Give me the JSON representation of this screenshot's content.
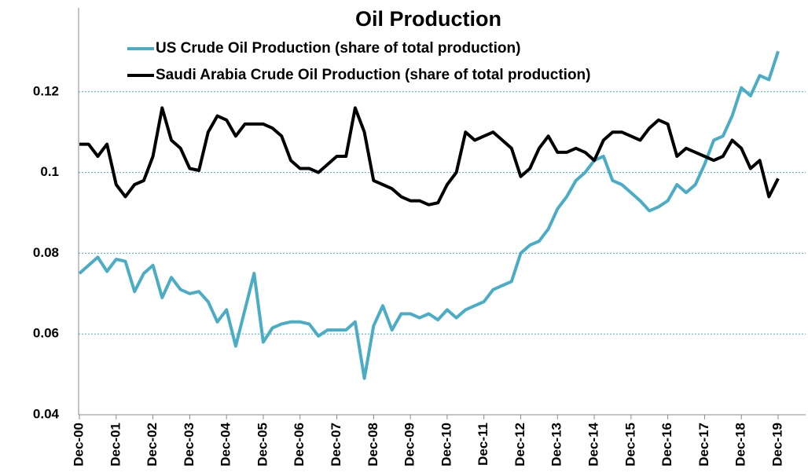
{
  "chart_data": {
    "type": "line",
    "title": "Oil Production",
    "categories": [
      "Dec-00",
      null,
      null,
      null,
      "Dec-01",
      null,
      null,
      null,
      "Dec-02",
      null,
      null,
      null,
      "Dec-03",
      null,
      null,
      null,
      "Dec-04",
      null,
      null,
      null,
      "Dec-05",
      null,
      null,
      null,
      "Dec-06",
      null,
      null,
      null,
      "Dec-07",
      null,
      null,
      null,
      "Dec-08",
      null,
      null,
      null,
      "Dec-09",
      null,
      null,
      null,
      "Dec-10",
      null,
      null,
      null,
      "Dec-11",
      null,
      null,
      null,
      "Dec-12",
      null,
      null,
      null,
      "Dec-13",
      null,
      null,
      null,
      "Dec-14",
      null,
      null,
      null,
      "Dec-15",
      null,
      null,
      null,
      "Dec-16",
      null,
      null,
      null,
      "Dec-17",
      null,
      null,
      null,
      "Dec-18",
      null,
      null,
      null,
      "Dec-19"
    ],
    "series": [
      {
        "name": "US Crude Oil Production (share of total production)",
        "color": "#4bacc6",
        "values": [
          0.075,
          0.077,
          0.079,
          0.0755,
          0.0785,
          0.078,
          0.0705,
          0.075,
          0.077,
          0.069,
          0.074,
          0.071,
          0.07,
          0.0705,
          0.068,
          0.063,
          0.066,
          0.057,
          0.066,
          0.075,
          0.058,
          0.0615,
          0.0625,
          0.063,
          0.063,
          0.0625,
          0.0595,
          0.061,
          0.061,
          0.061,
          0.063,
          0.049,
          0.062,
          0.067,
          0.061,
          0.065,
          0.065,
          0.064,
          0.065,
          0.0635,
          0.066,
          0.064,
          0.066,
          0.067,
          0.068,
          0.071,
          0.072,
          0.073,
          0.08,
          0.082,
          0.083,
          0.086,
          0.091,
          0.094,
          0.098,
          0.1,
          0.103,
          0.104,
          0.098,
          0.097,
          0.095,
          0.093,
          0.0905,
          0.0915,
          0.093,
          0.097,
          0.095,
          0.097,
          0.102,
          0.108,
          0.109,
          0.114,
          0.121,
          0.119,
          0.124,
          0.123,
          0.13
        ]
      },
      {
        "name": "Saudi Arabia Crude Oil Production (share of total production)",
        "color": "#000000",
        "values": [
          0.107,
          0.107,
          0.104,
          0.107,
          0.097,
          0.094,
          0.097,
          0.098,
          0.104,
          0.116,
          0.108,
          0.106,
          0.101,
          0.1005,
          0.11,
          0.114,
          0.113,
          0.109,
          0.112,
          0.112,
          0.112,
          0.111,
          0.109,
          0.103,
          0.101,
          0.101,
          0.1,
          0.102,
          0.104,
          0.104,
          0.116,
          0.11,
          0.098,
          0.097,
          0.096,
          0.094,
          0.093,
          0.093,
          0.092,
          0.0925,
          0.097,
          0.1,
          0.11,
          0.108,
          0.109,
          0.11,
          0.108,
          0.106,
          0.099,
          0.101,
          0.106,
          0.109,
          0.105,
          0.105,
          0.106,
          0.105,
          0.103,
          0.108,
          0.11,
          0.11,
          0.109,
          0.108,
          0.111,
          0.113,
          0.112,
          0.104,
          0.106,
          0.105,
          0.104,
          0.103,
          0.104,
          0.108,
          0.106,
          0.101,
          0.103,
          0.094,
          0.0985
        ]
      }
    ],
    "ylim": [
      0.04,
      0.14
    ],
    "yticks": [
      0.04,
      0.06,
      0.08,
      0.1,
      0.12
    ],
    "grid": true
  }
}
